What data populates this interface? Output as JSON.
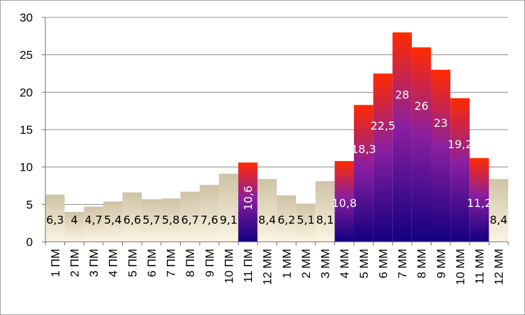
{
  "chart_data": {
    "type": "bar",
    "categories": [
      "1 ПМ",
      "2 ПМ",
      "3 ПМ",
      "4 ПМ",
      "5 ПМ",
      "6 ПМ",
      "7 ПМ",
      "8 ПМ",
      "9 ПМ",
      "10 ПМ",
      "11 ПМ",
      "12 ММ",
      "1 ММ",
      "2 ММ",
      "3 ММ",
      "4 ММ",
      "5 ММ",
      "6 ММ",
      "7 ММ",
      "8 ММ",
      "9 ММ",
      "10 ММ",
      "11 ММ",
      "12 ММ"
    ],
    "values": [
      6.3,
      4,
      4.7,
      5.4,
      6.6,
      5.7,
      5.8,
      6.7,
      7.6,
      9.1,
      10.6,
      8.4,
      6.2,
      5.1,
      8.1,
      10.8,
      18.3,
      22.5,
      28,
      26,
      23,
      19.2,
      11.2,
      8.4
    ],
    "data_labels": [
      "6,3",
      "4",
      "4,7",
      "5,4",
      "6,6",
      "5,7",
      "5,8",
      "6,7",
      "7,6",
      "9,1",
      "10,6",
      "8,4",
      "6,2",
      "5,1",
      "8,1",
      "10,8",
      "18,3",
      "22,5",
      "28",
      "26",
      "23",
      "19,2",
      "11,2",
      "8,4"
    ],
    "highlighted": [
      false,
      false,
      false,
      false,
      false,
      false,
      false,
      false,
      false,
      false,
      true,
      false,
      false,
      false,
      false,
      true,
      true,
      true,
      true,
      true,
      true,
      true,
      true,
      false
    ],
    "ylim": [
      0,
      30
    ],
    "yticks": [
      "0",
      "5",
      "10",
      "15",
      "20",
      "25",
      "30"
    ],
    "grid": true,
    "legend": "none",
    "colors": {
      "normal_top": "#cfc2a6",
      "normal_bottom": "#fbf5e2",
      "hot_top": "#ff2a00",
      "hot_mid": "#8a1fa0",
      "hot_bottom": "#120080",
      "grid": "#8c8c8c",
      "axis": "#6e6e6e",
      "label_dark": "#000000",
      "label_light": "#ffffff"
    }
  }
}
